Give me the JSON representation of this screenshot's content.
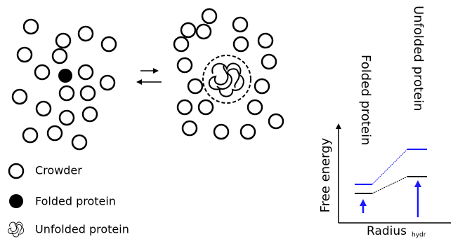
{
  "legend": {
    "items": [
      {
        "label": "Crowder"
      },
      {
        "label": "Folded protein"
      },
      {
        "label": "Unfolded protein"
      }
    ]
  },
  "energy_plot": {
    "y_axis_label": "Free energy",
    "x_axis_label": "Radius",
    "x_axis_subscript": "hydr",
    "state_labels": [
      "Folded protein",
      "Unfolded protein"
    ]
  }
}
